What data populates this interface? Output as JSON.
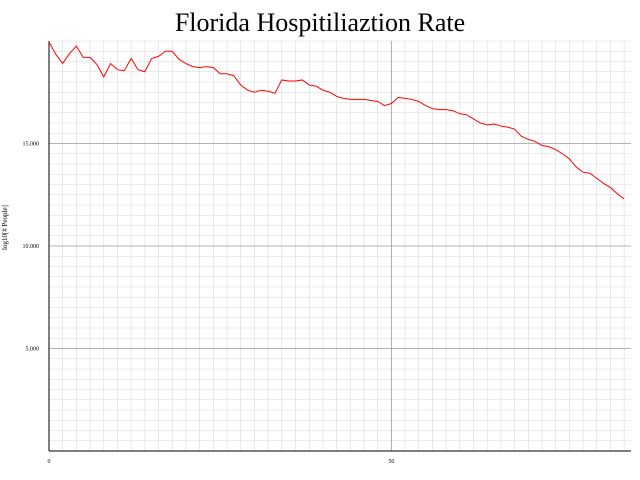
{
  "chart_data": {
    "type": "line",
    "title": "Florida Hospitiliaztion Rate",
    "xlabel": "",
    "ylabel": "log10[# People]",
    "xlim": [
      0,
      85
    ],
    "ylim": [
      0,
      20
    ],
    "xticks": [
      "0",
      "50"
    ],
    "yticks": [
      "5.000",
      "10.000",
      "15.000"
    ],
    "ytick_values": [
      5,
      10,
      15
    ],
    "xtick_values": [
      0,
      50
    ],
    "grid": true,
    "series": [
      {
        "color": "#ff0000",
        "x": [
          0,
          1,
          2,
          3,
          4,
          5,
          6,
          7,
          8,
          9,
          10,
          11,
          12,
          13,
          14,
          15,
          16,
          17,
          18,
          19,
          20,
          21,
          22,
          23,
          24,
          25,
          26,
          27,
          28,
          29,
          30,
          31,
          32,
          33,
          34,
          35,
          36,
          37,
          38,
          39,
          40,
          41,
          42,
          43,
          44,
          45,
          46,
          47,
          48,
          49,
          50,
          51,
          52,
          53,
          54,
          55,
          56,
          57,
          58,
          59,
          60,
          61,
          62,
          63,
          64,
          65,
          66,
          67,
          68,
          69,
          70,
          71,
          72,
          73,
          74,
          75,
          76,
          77,
          78,
          79,
          80,
          81,
          82,
          83,
          84
        ],
        "y": [
          19.95,
          19.35,
          18.9,
          19.4,
          19.75,
          19.2,
          19.2,
          18.85,
          18.25,
          18.9,
          18.6,
          18.55,
          19.15,
          18.6,
          18.5,
          19.15,
          19.25,
          19.5,
          19.5,
          19.1,
          18.9,
          18.75,
          18.7,
          18.75,
          18.7,
          18.4,
          18.4,
          18.3,
          17.85,
          17.6,
          17.5,
          17.6,
          17.55,
          17.45,
          18.1,
          18.05,
          18.05,
          18.1,
          17.85,
          17.8,
          17.6,
          17.5,
          17.3,
          17.2,
          17.15,
          17.15,
          17.15,
          17.1,
          17.05,
          16.85,
          16.95,
          17.25,
          17.2,
          17.15,
          17.05,
          16.85,
          16.7,
          16.65,
          16.65,
          16.6,
          16.45,
          16.4,
          16.2,
          16.0,
          15.9,
          15.95,
          15.85,
          15.8,
          15.7,
          15.35,
          15.2,
          15.1,
          14.9,
          14.85,
          14.7,
          14.5,
          14.25,
          13.85,
          13.6,
          13.55,
          13.3,
          13.05,
          12.85,
          12.55,
          12.3
        ]
      }
    ]
  }
}
